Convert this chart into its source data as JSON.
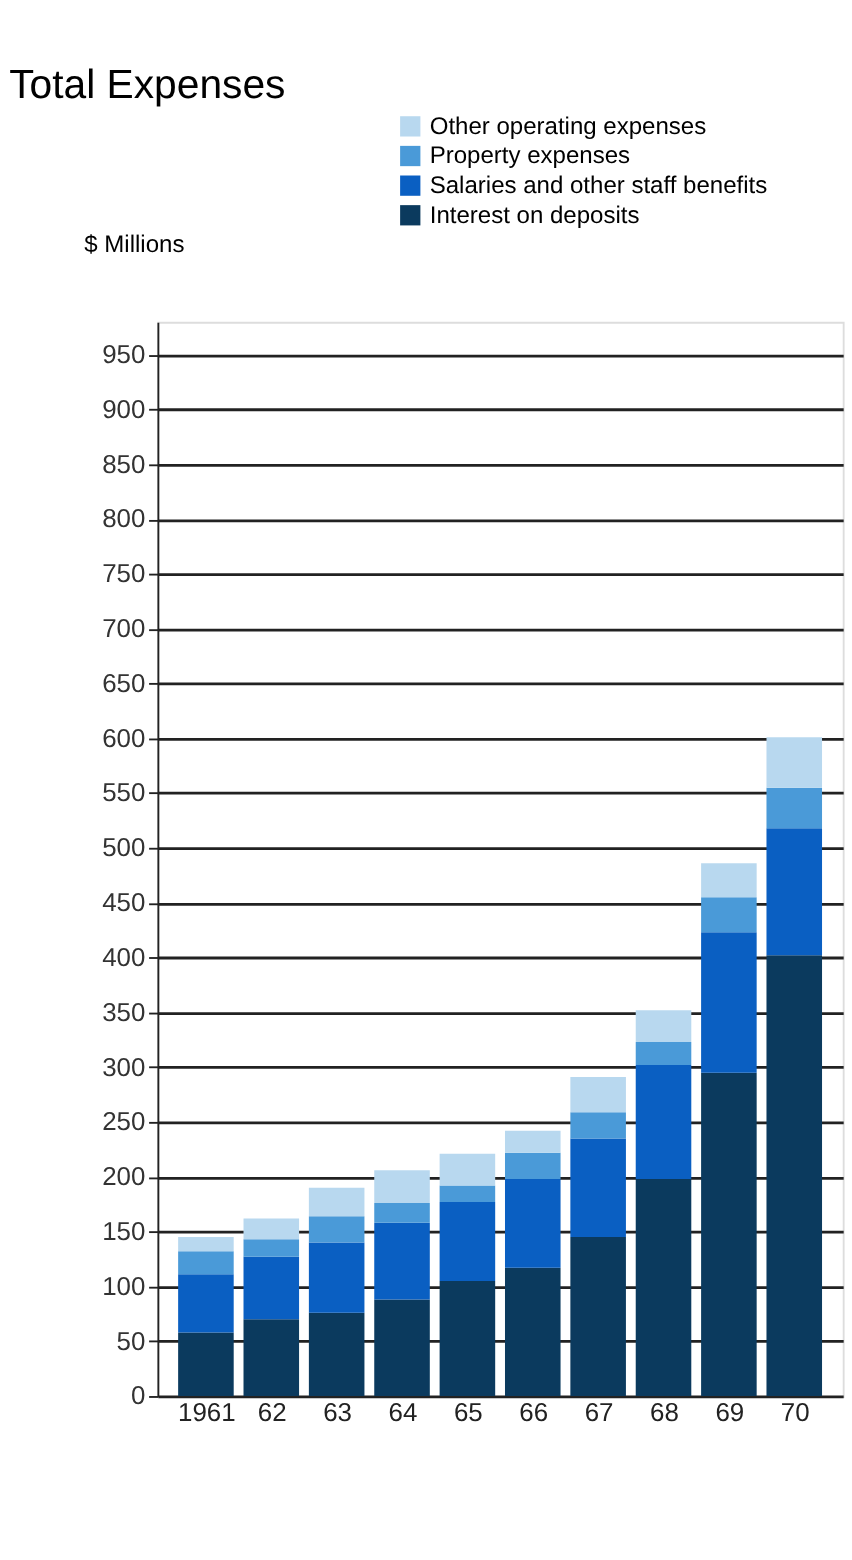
{
  "chart_data": {
    "type": "bar",
    "title": "Total Expenses",
    "ylabel": "$ Millions",
    "stacked": true,
    "categories": [
      "1961",
      "62",
      "63",
      "64",
      "65",
      "66",
      "67",
      "68",
      "69",
      "70"
    ],
    "series": [
      {
        "name": "Interest on deposits",
        "color": "#0b3a5e",
        "values": [
          58,
          70,
          76,
          88,
          105,
          117,
          145,
          198,
          295,
          402
        ]
      },
      {
        "name": "Salaries and other staff benefits",
        "color": "#0a5fc2",
        "values": [
          53,
          57,
          64,
          70,
          72,
          81,
          90,
          104,
          128,
          116
        ]
      },
      {
        "name": "Property expenses",
        "color": "#4a9ad8",
        "values": [
          21,
          16,
          24,
          18,
          15,
          24,
          24,
          21,
          32,
          37
        ]
      },
      {
        "name": "Other operating expenses",
        "color": "#b8d8ef",
        "values": [
          13,
          19,
          26,
          30,
          29,
          20,
          32,
          29,
          31,
          46
        ]
      }
    ],
    "ylim": [
      0,
      980
    ],
    "yticks": [
      0,
      50,
      100,
      150,
      200,
      250,
      300,
      350,
      400,
      450,
      500,
      550,
      600,
      650,
      700,
      750,
      800,
      850,
      900,
      950
    ],
    "grid": "y",
    "legend": "top right"
  }
}
